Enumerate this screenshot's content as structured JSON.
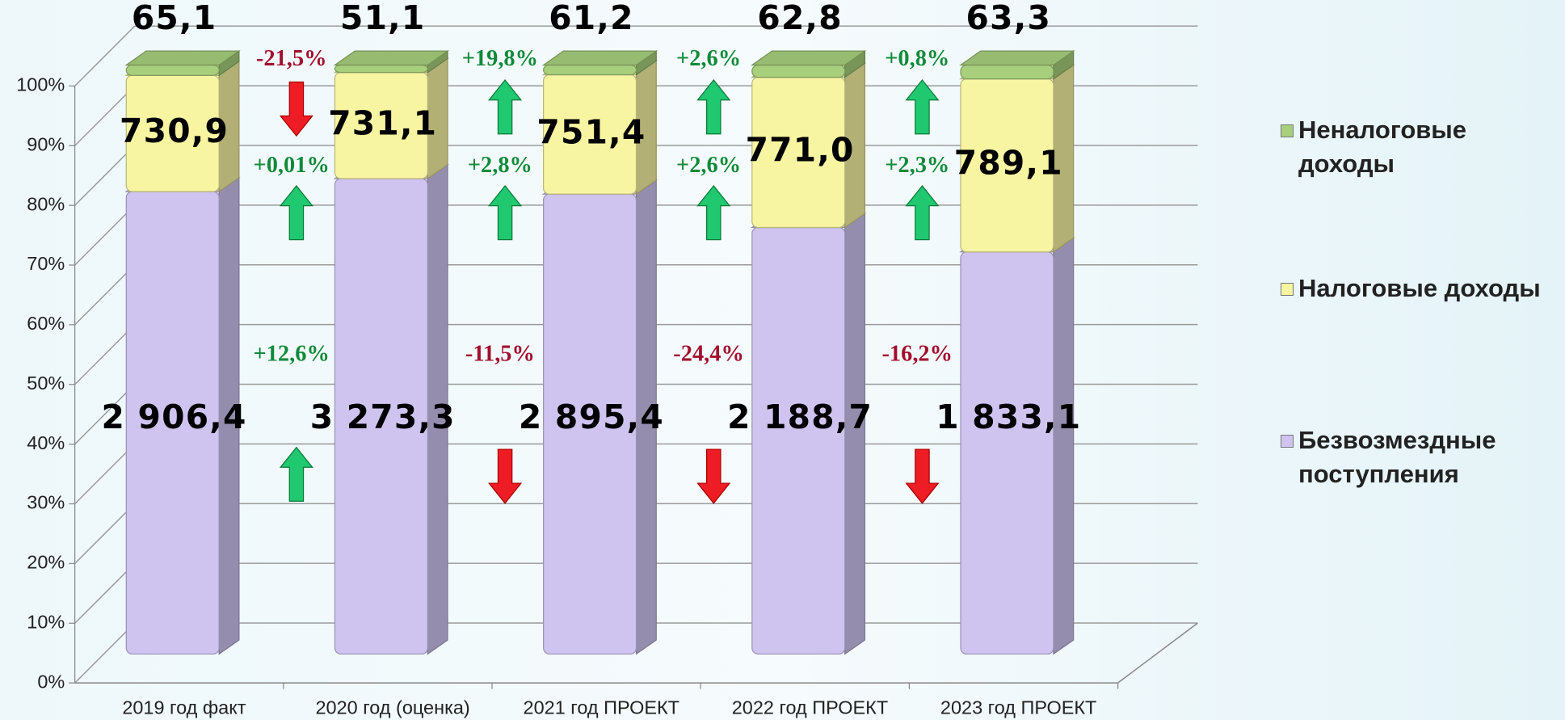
{
  "chart_data": {
    "type": "bar",
    "stacked": "percent",
    "three_d": true,
    "categories": [
      "2019 год факт",
      "2020 год (оценка)",
      "2021 год ПРОЕКТ",
      "2022 год ПРОЕКТ",
      "2023 год ПРОЕКТ"
    ],
    "series": [
      {
        "name": "Безвозмездные поступления",
        "color": "#cfc4f0",
        "values": [
          2906.4,
          3273.3,
          2895.4,
          2188.7,
          1833.1
        ],
        "value_labels": [
          "2 906,4",
          "3 273,3",
          "2 895,4",
          "2 188,7",
          "1 833,1"
        ]
      },
      {
        "name": "Налоговые доходы",
        "color": "#f8f5a2",
        "values": [
          730.9,
          731.1,
          751.4,
          771.0,
          789.1
        ],
        "value_labels": [
          "730,9",
          "731,1",
          "751,4",
          "771,0",
          "789,1"
        ]
      },
      {
        "name": "Неналоговые доходы",
        "color": "#a8d07c",
        "values": [
          65.1,
          51.1,
          61.2,
          62.8,
          63.3
        ],
        "value_labels": [
          "65,1",
          "51,1",
          "61,2",
          "62,8",
          "63,3"
        ]
      }
    ],
    "ylim": [
      0,
      100
    ],
    "yticks": [
      {
        "value": 0,
        "label": "0%"
      },
      {
        "value": 10,
        "label": "10%"
      },
      {
        "value": 20,
        "label": "20%"
      },
      {
        "value": 30,
        "label": "30%"
      },
      {
        "value": 40,
        "label": "40%"
      },
      {
        "value": 50,
        "label": "50%"
      },
      {
        "value": 60,
        "label": "60%"
      },
      {
        "value": 70,
        "label": "70%"
      },
      {
        "value": 80,
        "label": "80%"
      },
      {
        "value": 90,
        "label": "90%"
      },
      {
        "value": 100,
        "label": "100%"
      }
    ],
    "grid": true,
    "legend": "right",
    "annotations": [
      {
        "text": "-21,5%",
        "direction": "down"
      },
      {
        "text": "+0,01%",
        "direction": "up"
      },
      {
        "text": "+12,6%",
        "direction": "up"
      },
      {
        "text": "+19,8%",
        "direction": "up"
      },
      {
        "text": "+2,8%",
        "direction": "up"
      },
      {
        "text": "-11,5%",
        "direction": "down"
      },
      {
        "text": "+2,6%",
        "direction": "up"
      },
      {
        "text": "+2,6%",
        "direction": "up"
      },
      {
        "text": "-24,4%",
        "direction": "down"
      },
      {
        "text": "+0,8%",
        "direction": "up"
      },
      {
        "text": "+2,3%",
        "direction": "up"
      },
      {
        "text": "-16,2%",
        "direction": "down"
      }
    ]
  }
}
